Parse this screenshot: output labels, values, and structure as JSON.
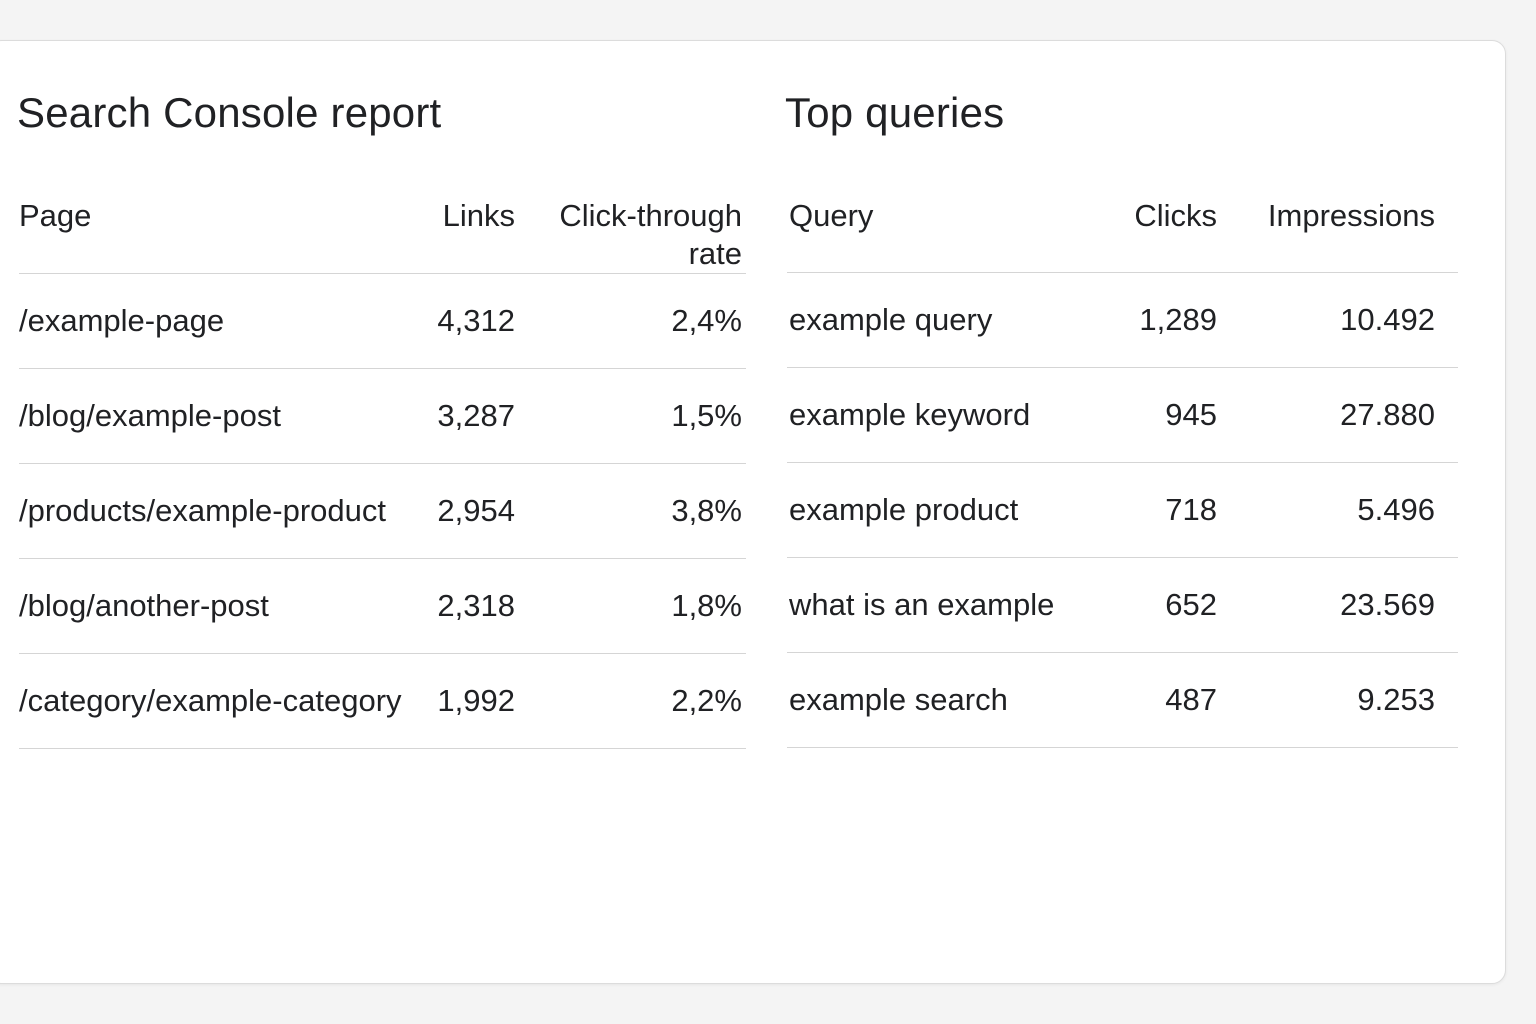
{
  "pages_panel": {
    "title": "Search Console report",
    "columns": [
      "Page",
      "Links",
      "Click-through rate"
    ],
    "rows": [
      {
        "page": "/example-page",
        "links": "4,312",
        "ctr": "2,4%"
      },
      {
        "page": "/blog/example-post",
        "links": "3,287",
        "ctr": "1,5%"
      },
      {
        "page": "/products/example-product",
        "links": "2,954",
        "ctr": "3,8%"
      },
      {
        "page": "/blog/another-post",
        "links": "2,318",
        "ctr": "1,8%"
      },
      {
        "page": "/category/example-category",
        "links": "1,992",
        "ctr": "2,2%"
      }
    ]
  },
  "queries_panel": {
    "title": "Top queries",
    "columns": [
      "Query",
      "Clicks",
      "Impressions"
    ],
    "rows": [
      {
        "query": "example query",
        "clicks": "1,289",
        "impressions": "10.492"
      },
      {
        "query": "example keyword",
        "clicks": "945",
        "impressions": "27.880"
      },
      {
        "query": "example product",
        "clicks": "718",
        "impressions": "5.496"
      },
      {
        "query": "what is an example",
        "clicks": "652",
        "impressions": "23.569"
      },
      {
        "query": "example search",
        "clicks": "487",
        "impressions": "9.253"
      }
    ]
  }
}
